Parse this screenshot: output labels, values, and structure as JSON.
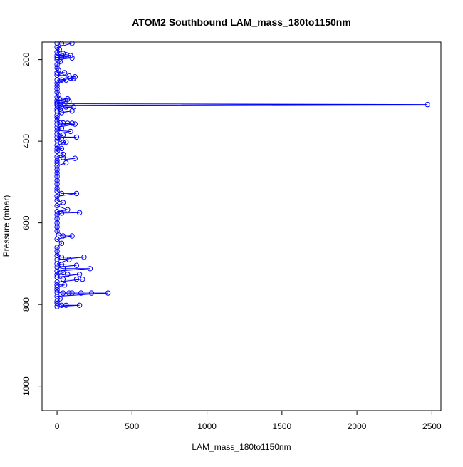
{
  "chart_data": {
    "type": "line",
    "title": "ATOM2 Southbound LAM_mass_180to1150nm",
    "xlabel": "LAM_mass_180to1150nm",
    "ylabel": "Pressure (mbar)",
    "xlim": [
      -100,
      2560
    ],
    "ylim": [
      1060,
      157
    ],
    "y_reversed": true,
    "xticks": [
      0,
      500,
      1000,
      1500,
      2000,
      2500
    ],
    "yticks": [
      200,
      400,
      600,
      800,
      1000
    ],
    "grid": false,
    "legend": "none",
    "series": [
      {
        "color": "#0000ff",
        "marker": "open-circle",
        "points": [
          [
            0,
            160
          ],
          [
            30,
            160
          ],
          [
            100,
            160
          ],
          [
            0,
            170
          ],
          [
            15,
            175
          ],
          [
            0,
            182
          ],
          [
            40,
            185
          ],
          [
            0,
            190
          ],
          [
            60,
            188
          ],
          [
            90,
            190
          ],
          [
            0,
            195
          ],
          [
            30,
            195
          ],
          [
            100,
            196
          ],
          [
            0,
            200
          ],
          [
            20,
            205
          ],
          [
            0,
            212
          ],
          [
            0,
            220
          ],
          [
            10,
            226
          ],
          [
            0,
            232
          ],
          [
            50,
            232
          ],
          [
            0,
            238
          ],
          [
            80,
            240
          ],
          [
            120,
            242
          ],
          [
            90,
            245
          ],
          [
            110,
            246
          ],
          [
            0,
            250
          ],
          [
            30,
            250
          ],
          [
            60,
            250
          ],
          [
            0,
            258
          ],
          [
            0,
            265
          ],
          [
            0,
            272
          ],
          [
            0,
            280
          ],
          [
            10,
            286
          ],
          [
            0,
            292
          ],
          [
            70,
            296
          ],
          [
            0,
            300
          ],
          [
            40,
            300
          ],
          [
            80,
            302
          ],
          [
            0,
            305
          ],
          [
            0,
            308
          ],
          [
            2470,
            310
          ],
          [
            0,
            312
          ],
          [
            30,
            315
          ],
          [
            60,
            316
          ],
          [
            110,
            316
          ],
          [
            0,
            320
          ],
          [
            20,
            322
          ],
          [
            0,
            326
          ],
          [
            100,
            326
          ],
          [
            30,
            330
          ],
          [
            0,
            336
          ],
          [
            0,
            342
          ],
          [
            0,
            350
          ],
          [
            20,
            355
          ],
          [
            40,
            355
          ],
          [
            70,
            356
          ],
          [
            100,
            356
          ],
          [
            0,
            358
          ],
          [
            120,
            358
          ],
          [
            0,
            366
          ],
          [
            30,
            368
          ],
          [
            0,
            374
          ],
          [
            90,
            376
          ],
          [
            0,
            382
          ],
          [
            40,
            385
          ],
          [
            0,
            390
          ],
          [
            130,
            390
          ],
          [
            30,
            392
          ],
          [
            0,
            398
          ],
          [
            40,
            403
          ],
          [
            60,
            402
          ],
          [
            0,
            410
          ],
          [
            0,
            418
          ],
          [
            30,
            418
          ],
          [
            0,
            425
          ],
          [
            40,
            432
          ],
          [
            0,
            438
          ],
          [
            40,
            440
          ],
          [
            120,
            442
          ],
          [
            0,
            447
          ],
          [
            0,
            453
          ],
          [
            60,
            453
          ],
          [
            0,
            460
          ],
          [
            0,
            470
          ],
          [
            0,
            478
          ],
          [
            0,
            486
          ],
          [
            0,
            496
          ],
          [
            0,
            505
          ],
          [
            0,
            515
          ],
          [
            0,
            522
          ],
          [
            30,
            528
          ],
          [
            130,
            528
          ],
          [
            0,
            535
          ],
          [
            0,
            545
          ],
          [
            40,
            550
          ],
          [
            0,
            558
          ],
          [
            70,
            568
          ],
          [
            0,
            572
          ],
          [
            150,
            575
          ],
          [
            30,
            576
          ],
          [
            0,
            580
          ],
          [
            0,
            590
          ],
          [
            0,
            600
          ],
          [
            0,
            610
          ],
          [
            0,
            620
          ],
          [
            10,
            630
          ],
          [
            40,
            632
          ],
          [
            100,
            632
          ],
          [
            0,
            640
          ],
          [
            30,
            650
          ],
          [
            0,
            660
          ],
          [
            0,
            670
          ],
          [
            0,
            680
          ],
          [
            30,
            684
          ],
          [
            180,
            684
          ],
          [
            0,
            690
          ],
          [
            80,
            690
          ],
          [
            0,
            700
          ],
          [
            30,
            702
          ],
          [
            130,
            704
          ],
          [
            0,
            708
          ],
          [
            40,
            712
          ],
          [
            220,
            712
          ],
          [
            0,
            718
          ],
          [
            40,
            722
          ],
          [
            0,
            727
          ],
          [
            70,
            726
          ],
          [
            150,
            726
          ],
          [
            0,
            733
          ],
          [
            40,
            738
          ],
          [
            130,
            738
          ],
          [
            170,
            738
          ],
          [
            0,
            745
          ],
          [
            0,
            752
          ],
          [
            50,
            752
          ],
          [
            0,
            758
          ],
          [
            0,
            764
          ],
          [
            0,
            770
          ],
          [
            40,
            772
          ],
          [
            80,
            772
          ],
          [
            100,
            772
          ],
          [
            160,
            772
          ],
          [
            230,
            772
          ],
          [
            340,
            772
          ],
          [
            0,
            780
          ],
          [
            20,
            786
          ],
          [
            0,
            792
          ],
          [
            0,
            797
          ],
          [
            30,
            802
          ],
          [
            60,
            802
          ],
          [
            150,
            802
          ],
          [
            0,
            805
          ]
        ]
      }
    ]
  }
}
